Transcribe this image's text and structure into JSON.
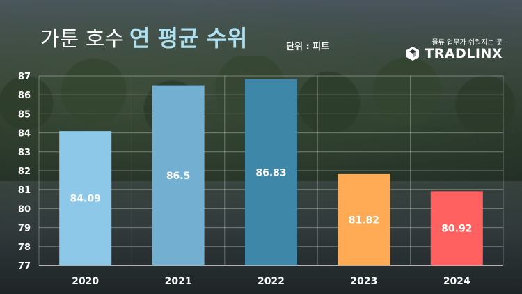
{
  "header": {
    "title_light": "가툰 호수",
    "title_bold": "연 평균 수위",
    "unit": "단위 : 피트"
  },
  "brand": {
    "tagline": "물류 업무가 쉬워지는 곳",
    "name": "TRADLINX",
    "logo": "cube-logo-icon"
  },
  "chart_data": {
    "type": "bar",
    "categories": [
      "2020",
      "2021",
      "2022",
      "2023",
      "2024"
    ],
    "values": [
      84.09,
      86.5,
      86.83,
      81.82,
      80.92
    ],
    "value_labels": [
      "84.09",
      "86.5",
      "86.83",
      "81.82",
      "80.92"
    ],
    "colors": [
      "#8ec8e8",
      "#72afd0",
      "#3e87a8",
      "#ffab55",
      "#ff6060"
    ],
    "ylim": [
      77,
      87
    ],
    "yticks": [
      "77",
      "78",
      "79",
      "80",
      "81",
      "82",
      "83",
      "84",
      "85",
      "86",
      "87"
    ],
    "grid": true,
    "title": "",
    "xlabel": "",
    "ylabel": ""
  }
}
